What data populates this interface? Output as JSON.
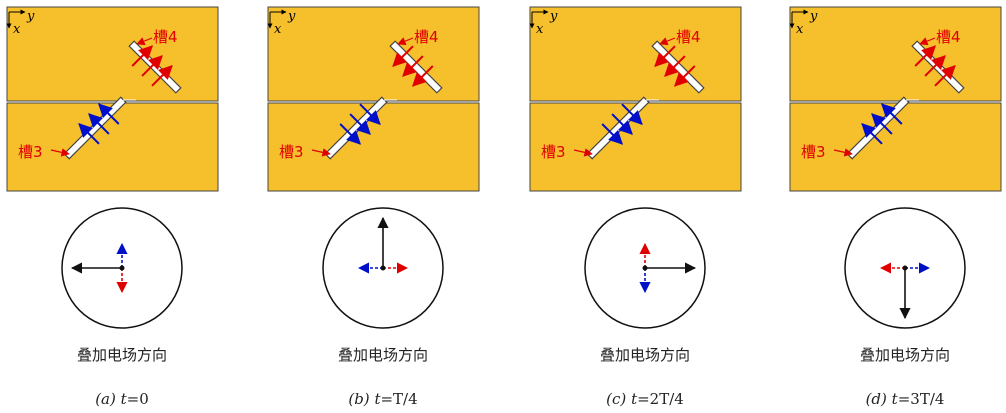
{
  "colors": {
    "board": "#f6bf2c",
    "board_stroke": "#444444",
    "red": "#e00000",
    "blue": "#0010c8",
    "black": "#111111"
  },
  "axes": {
    "x": "x",
    "y": "y"
  },
  "slots": {
    "upper": "槽4",
    "lower": "槽3"
  },
  "panels": [
    {
      "label": "叠加电场方向",
      "caption_letter": "(a)",
      "caption_var": "t",
      "caption_value": "=0",
      "red_dir": "down",
      "blue_dir": "up",
      "resultant_dir": "left"
    },
    {
      "label": "叠加电场方向",
      "caption_letter": "(b)",
      "caption_var": "t",
      "caption_value": "=T/4",
      "red_dir": "right",
      "blue_dir": "left",
      "resultant_dir": "up"
    },
    {
      "label": "叠加电场方向",
      "caption_letter": "(c)",
      "caption_var": "t",
      "caption_value": "=2T/4",
      "red_dir": "up",
      "blue_dir": "down",
      "resultant_dir": "right"
    },
    {
      "label": "叠加电场方向",
      "caption_letter": "(d)",
      "caption_var": "t",
      "caption_value": "=3T/4",
      "red_dir": "left",
      "blue_dir": "right",
      "resultant_dir": "down"
    }
  ]
}
